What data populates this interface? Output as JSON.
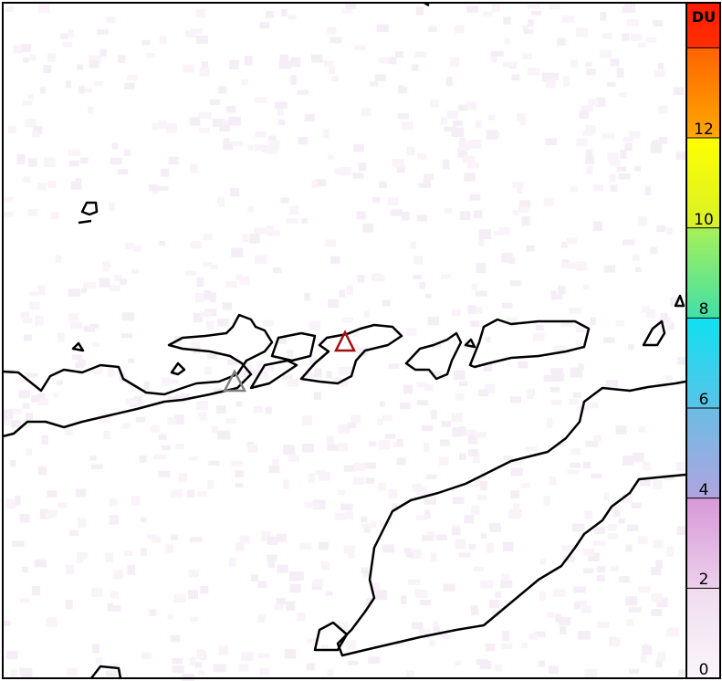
{
  "colorbar": {
    "unit": "DU",
    "ticks": [
      {
        "value": 0,
        "label": "0"
      },
      {
        "value": 2,
        "label": "2"
      },
      {
        "value": 4,
        "label": "4"
      },
      {
        "value": 6,
        "label": "6"
      },
      {
        "value": 8,
        "label": "8"
      },
      {
        "value": 10,
        "label": "10"
      },
      {
        "value": 12,
        "label": "12"
      },
      {
        "value": 14,
        "label": ""
      }
    ],
    "range": [
      0,
      15
    ],
    "segments": [
      {
        "from": 0,
        "to": 2,
        "colors": [
          "#fbf6fb",
          "#efdcef"
        ]
      },
      {
        "from": 2,
        "to": 4,
        "colors": [
          "#ecd0ec",
          "#d898d8"
        ]
      },
      {
        "from": 4,
        "to": 6,
        "colors": [
          "#b0a4e0",
          "#6cbce4"
        ]
      },
      {
        "from": 6,
        "to": 8,
        "colors": [
          "#58c4e8",
          "#10e0f0"
        ]
      },
      {
        "from": 8,
        "to": 10,
        "colors": [
          "#40e0a8",
          "#a8f058"
        ]
      },
      {
        "from": 10,
        "to": 12,
        "colors": [
          "#d8f028",
          "#ffff00"
        ]
      },
      {
        "from": 12,
        "to": 14,
        "colors": [
          "#ffa800",
          "#ff6400"
        ]
      },
      {
        "from": 14,
        "to": 15,
        "colors": [
          "#ff3000",
          "#ff1a00"
        ]
      }
    ]
  },
  "map": {
    "coastline_color": "#000000",
    "background_color": "#ffffff",
    "volcanoes": [
      {
        "name_icon": "volcano-triangle-active",
        "color": "#a01010"
      },
      {
        "name_icon": "volcano-triangle",
        "color": "#808080"
      }
    ]
  }
}
